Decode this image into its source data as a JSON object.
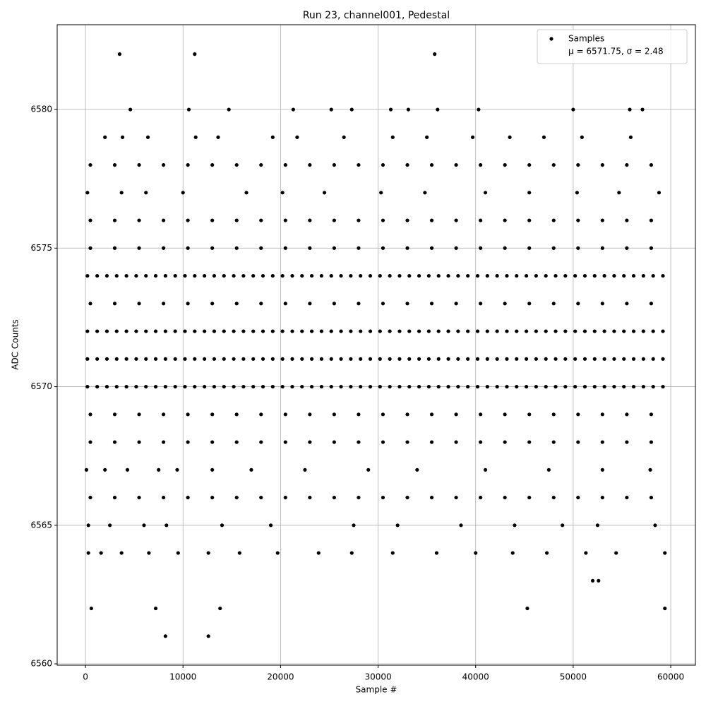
{
  "chart_data": {
    "type": "scatter",
    "title": "Run 23, channel001, Pedestal",
    "x_label": "Sample #",
    "y_label": "ADC Counts",
    "legend_loc": "upper right",
    "legend_note": "μ = 6571.75, σ = 2.48",
    "grid": true,
    "xlim": [
      -2900,
      62530
    ],
    "ylim": [
      6559.95,
      6583.06
    ],
    "xticks": [
      0,
      10000,
      20000,
      30000,
      40000,
      50000,
      60000
    ],
    "yticks": [
      6560,
      6565,
      6570,
      6575,
      6580
    ],
    "series": [
      {
        "name": "Samples",
        "color": "#000000",
        "x": [
          200,
          1200,
          2200,
          3200,
          4200,
          5200,
          6200,
          7200,
          8200,
          9200,
          10200,
          11200,
          12200,
          13200,
          14200,
          15200,
          16200,
          17200,
          18200,
          19200,
          20200,
          21200,
          22200,
          23200,
          24200,
          25200,
          26200,
          27200,
          28200,
          29200,
          30200,
          31200,
          32200,
          33200,
          34200,
          35200,
          36200,
          37200,
          38200,
          39200,
          40200,
          41200,
          42200,
          43200,
          44200,
          45200,
          46200,
          47200,
          48200,
          49200,
          50200,
          51200,
          52200,
          53200,
          54200,
          55200,
          56200,
          57200,
          58200,
          59200,
          200,
          1200,
          2200,
          3200,
          4200,
          5200,
          6200,
          7200,
          8200,
          9200,
          10200,
          11200,
          12200,
          13200,
          14200,
          15200,
          16200,
          17200,
          18200,
          19200,
          20200,
          21200,
          22200,
          23200,
          24200,
          25200,
          26200,
          27200,
          28200,
          29200,
          30200,
          31200,
          32200,
          33200,
          34200,
          35200,
          36200,
          37200,
          38200,
          39200,
          40200,
          41200,
          42200,
          43200,
          44200,
          45200,
          46200,
          47200,
          48200,
          49200,
          50200,
          51200,
          52200,
          53200,
          54200,
          55200,
          56200,
          57200,
          58200,
          59200,
          200,
          1200,
          2200,
          3200,
          4200,
          5200,
          6200,
          7200,
          8200,
          9200,
          10200,
          11200,
          12200,
          13200,
          14200,
          15200,
          16200,
          17200,
          18200,
          19200,
          20200,
          21200,
          22200,
          23200,
          24200,
          25200,
          26200,
          27200,
          28200,
          29200,
          30200,
          31200,
          32200,
          33200,
          34200,
          35200,
          36200,
          37200,
          38200,
          39200,
          40200,
          41200,
          42200,
          43200,
          44200,
          45200,
          46200,
          47200,
          48200,
          49200,
          50200,
          51200,
          52200,
          53200,
          54200,
          55200,
          56200,
          57200,
          58200,
          59200,
          200,
          1200,
          2200,
          3200,
          4200,
          5200,
          6200,
          7200,
          8200,
          9200,
          10200,
          11200,
          12200,
          13200,
          14200,
          15200,
          16200,
          17200,
          18200,
          19200,
          20200,
          21200,
          22200,
          23200,
          24200,
          25200,
          26200,
          27200,
          28200,
          29200,
          30200,
          31200,
          32200,
          33200,
          34200,
          35200,
          36200,
          37200,
          38200,
          39200,
          40200,
          41200,
          42200,
          43200,
          44200,
          45200,
          46200,
          47200,
          48200,
          49200,
          50200,
          51200,
          52200,
          53200,
          54200,
          55200,
          56200,
          57200,
          58200,
          59200,
          500,
          3000,
          5500,
          8000,
          10500,
          13000,
          15500,
          18000,
          20500,
          23000,
          25500,
          28000,
          30500,
          33000,
          35500,
          38000,
          40500,
          43000,
          45500,
          48000,
          50500,
          53000,
          55500,
          58000,
          500,
          3000,
          5500,
          8000,
          10500,
          13000,
          15500,
          18000,
          20500,
          23000,
          25500,
          28000,
          30500,
          33000,
          35500,
          38000,
          40500,
          43000,
          45500,
          48000,
          50500,
          53000,
          55500,
          58000,
          500,
          3000,
          5500,
          8000,
          10500,
          13000,
          15500,
          18000,
          20500,
          23000,
          25500,
          28000,
          30500,
          33000,
          35500,
          38000,
          40500,
          43000,
          45500,
          48000,
          50500,
          53000,
          55500,
          58000,
          500,
          3000,
          5500,
          8000,
          10500,
          13000,
          15500,
          18000,
          20500,
          23000,
          25500,
          28000,
          30500,
          33000,
          35500,
          38000,
          40500,
          43000,
          45500,
          48000,
          50500,
          53000,
          55500,
          58000,
          500,
          3000,
          5500,
          8000,
          10500,
          13000,
          15500,
          18000,
          20500,
          23000,
          25500,
          28000,
          30500,
          33000,
          35500,
          38000,
          40500,
          43000,
          45500,
          48000,
          50500,
          53000,
          55500,
          58000,
          500,
          3000,
          5500,
          8000,
          10500,
          13000,
          15500,
          18000,
          20500,
          23000,
          25500,
          28000,
          30500,
          33000,
          35500,
          38000,
          40500,
          43000,
          45500,
          48000,
          50500,
          53000,
          55500,
          58000,
          500,
          3000,
          5500,
          8000,
          10500,
          13000,
          15500,
          18000,
          20500,
          23000,
          25500,
          28000,
          30500,
          33000,
          35500,
          38000,
          40500,
          43000,
          45500,
          48000,
          50500,
          53000,
          55500,
          58000,
          100,
          2000,
          4300,
          7500,
          9400,
          13000,
          17000,
          22500,
          29000,
          34000,
          41000,
          47500,
          53000,
          57900,
          300,
          2500,
          6000,
          8300,
          14000,
          19000,
          27500,
          32000,
          38500,
          44000,
          48900,
          52500,
          58400,
          300,
          1600,
          3700,
          6500,
          9500,
          12600,
          15800,
          19700,
          23900,
          27300,
          31500,
          36000,
          40000,
          43800,
          47300,
          51300,
          54400,
          59400,
          200,
          3700,
          6200,
          10000,
          16500,
          20200,
          24500,
          30300,
          34800,
          41000,
          45500,
          50400,
          54700,
          58800,
          2000,
          3800,
          6400,
          11300,
          13600,
          19200,
          21700,
          26500,
          31500,
          35000,
          39700,
          43500,
          47000,
          50900,
          55900,
          4600,
          10600,
          14700,
          21300,
          25200,
          27300,
          31300,
          33100,
          36100,
          40300,
          50000,
          55800,
          57100,
          3500,
          11200,
          35800,
          600,
          7200,
          13800,
          45300,
          59400,
          8200,
          12600,
          52000,
          52600
        ],
        "values": [
          6570,
          6570,
          6570,
          6570,
          6570,
          6570,
          6570,
          6570,
          6570,
          6570,
          6570,
          6570,
          6570,
          6570,
          6570,
          6570,
          6570,
          6570,
          6570,
          6570,
          6570,
          6570,
          6570,
          6570,
          6570,
          6570,
          6570,
          6570,
          6570,
          6570,
          6570,
          6570,
          6570,
          6570,
          6570,
          6570,
          6570,
          6570,
          6570,
          6570,
          6570,
          6570,
          6570,
          6570,
          6570,
          6570,
          6570,
          6570,
          6570,
          6570,
          6570,
          6570,
          6570,
          6570,
          6570,
          6570,
          6570,
          6570,
          6570,
          6570,
          6571,
          6571,
          6571,
          6571,
          6571,
          6571,
          6571,
          6571,
          6571,
          6571,
          6571,
          6571,
          6571,
          6571,
          6571,
          6571,
          6571,
          6571,
          6571,
          6571,
          6571,
          6571,
          6571,
          6571,
          6571,
          6571,
          6571,
          6571,
          6571,
          6571,
          6571,
          6571,
          6571,
          6571,
          6571,
          6571,
          6571,
          6571,
          6571,
          6571,
          6571,
          6571,
          6571,
          6571,
          6571,
          6571,
          6571,
          6571,
          6571,
          6571,
          6571,
          6571,
          6571,
          6571,
          6571,
          6571,
          6571,
          6571,
          6571,
          6571,
          6572,
          6572,
          6572,
          6572,
          6572,
          6572,
          6572,
          6572,
          6572,
          6572,
          6572,
          6572,
          6572,
          6572,
          6572,
          6572,
          6572,
          6572,
          6572,
          6572,
          6572,
          6572,
          6572,
          6572,
          6572,
          6572,
          6572,
          6572,
          6572,
          6572,
          6572,
          6572,
          6572,
          6572,
          6572,
          6572,
          6572,
          6572,
          6572,
          6572,
          6572,
          6572,
          6572,
          6572,
          6572,
          6572,
          6572,
          6572,
          6572,
          6572,
          6572,
          6572,
          6572,
          6572,
          6572,
          6572,
          6572,
          6572,
          6572,
          6572,
          6574,
          6574,
          6574,
          6574,
          6574,
          6574,
          6574,
          6574,
          6574,
          6574,
          6574,
          6574,
          6574,
          6574,
          6574,
          6574,
          6574,
          6574,
          6574,
          6574,
          6574,
          6574,
          6574,
          6574,
          6574,
          6574,
          6574,
          6574,
          6574,
          6574,
          6574,
          6574,
          6574,
          6574,
          6574,
          6574,
          6574,
          6574,
          6574,
          6574,
          6574,
          6574,
          6574,
          6574,
          6574,
          6574,
          6574,
          6574,
          6574,
          6574,
          6574,
          6574,
          6574,
          6574,
          6574,
          6574,
          6574,
          6574,
          6574,
          6574,
          6568,
          6568,
          6568,
          6568,
          6568,
          6568,
          6568,
          6568,
          6568,
          6568,
          6568,
          6568,
          6568,
          6568,
          6568,
          6568,
          6568,
          6568,
          6568,
          6568,
          6568,
          6568,
          6568,
          6568,
          6573,
          6573,
          6573,
          6573,
          6573,
          6573,
          6573,
          6573,
          6573,
          6573,
          6573,
          6573,
          6573,
          6573,
          6573,
          6573,
          6573,
          6573,
          6573,
          6573,
          6573,
          6573,
          6573,
          6573,
          6576,
          6576,
          6576,
          6576,
          6576,
          6576,
          6576,
          6576,
          6576,
          6576,
          6576,
          6576,
          6576,
          6576,
          6576,
          6576,
          6576,
          6576,
          6576,
          6576,
          6576,
          6576,
          6576,
          6576,
          6569,
          6569,
          6569,
          6569,
          6569,
          6569,
          6569,
          6569,
          6569,
          6569,
          6569,
          6569,
          6569,
          6569,
          6569,
          6569,
          6569,
          6569,
          6569,
          6569,
          6569,
          6569,
          6569,
          6569,
          6575,
          6575,
          6575,
          6575,
          6575,
          6575,
          6575,
          6575,
          6575,
          6575,
          6575,
          6575,
          6575,
          6575,
          6575,
          6575,
          6575,
          6575,
          6575,
          6575,
          6575,
          6575,
          6575,
          6575,
          6566,
          6566,
          6566,
          6566,
          6566,
          6566,
          6566,
          6566,
          6566,
          6566,
          6566,
          6566,
          6566,
          6566,
          6566,
          6566,
          6566,
          6566,
          6566,
          6566,
          6566,
          6566,
          6566,
          6566,
          6578,
          6578,
          6578,
          6578,
          6578,
          6578,
          6578,
          6578,
          6578,
          6578,
          6578,
          6578,
          6578,
          6578,
          6578,
          6578,
          6578,
          6578,
          6578,
          6578,
          6578,
          6578,
          6578,
          6578,
          6567,
          6567,
          6567,
          6567,
          6567,
          6567,
          6567,
          6567,
          6567,
          6567,
          6567,
          6567,
          6567,
          6567,
          6565,
          6565,
          6565,
          6565,
          6565,
          6565,
          6565,
          6565,
          6565,
          6565,
          6565,
          6565,
          6565,
          6564,
          6564,
          6564,
          6564,
          6564,
          6564,
          6564,
          6564,
          6564,
          6564,
          6564,
          6564,
          6564,
          6564,
          6564,
          6564,
          6564,
          6564,
          6577,
          6577,
          6577,
          6577,
          6577,
          6577,
          6577,
          6577,
          6577,
          6577,
          6577,
          6577,
          6577,
          6577,
          6579,
          6579,
          6579,
          6579,
          6579,
          6579,
          6579,
          6579,
          6579,
          6579,
          6579,
          6579,
          6579,
          6579,
          6579,
          6580,
          6580,
          6580,
          6580,
          6580,
          6580,
          6580,
          6580,
          6580,
          6580,
          6580,
          6580,
          6580,
          6582,
          6582,
          6582,
          6562,
          6562,
          6562,
          6562,
          6562,
          6561,
          6561,
          6563,
          6563
        ]
      }
    ]
  }
}
